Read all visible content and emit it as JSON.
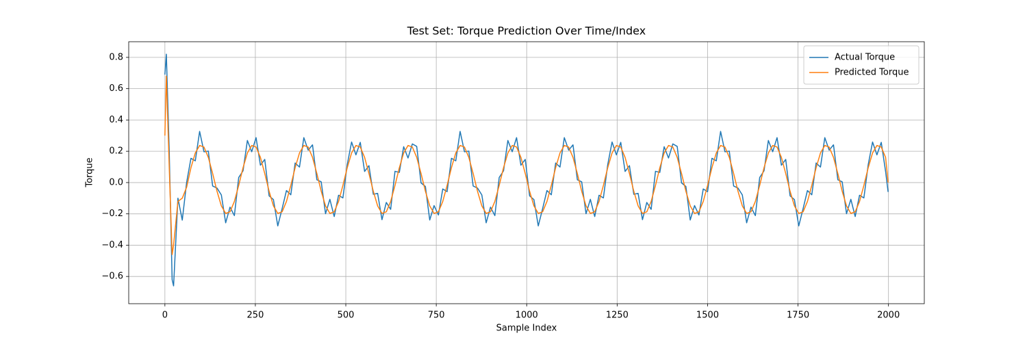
{
  "chart_data": {
    "type": "line",
    "title": "Test Set: Torque Prediction Over Time/Index",
    "xlabel": "Sample Index",
    "ylabel": "Torque",
    "x": [
      0,
      4,
      12,
      20,
      24,
      36,
      48,
      60,
      72,
      84,
      96,
      108,
      120,
      132,
      144,
      156,
      168,
      180,
      192,
      204,
      216,
      228,
      240,
      252,
      264,
      276,
      288,
      300,
      312,
      324,
      336,
      348,
      360,
      372,
      384,
      396,
      408,
      420,
      432,
      444,
      456,
      468,
      480,
      492,
      504,
      516,
      528,
      540,
      552,
      564,
      576,
      588,
      600,
      612,
      624,
      636,
      648,
      660,
      672,
      684,
      696,
      708,
      720,
      732,
      744,
      756,
      768,
      780,
      792,
      804,
      816,
      828,
      840,
      852,
      864,
      876,
      888,
      900,
      912,
      924,
      936,
      948,
      960,
      972,
      984,
      996,
      1008,
      1020,
      1032,
      1044,
      1056,
      1068,
      1080,
      1092,
      1104,
      1116,
      1128,
      1140,
      1152,
      1164,
      1176,
      1188,
      1200,
      1212,
      1224,
      1236,
      1248,
      1260,
      1272,
      1284,
      1296,
      1308,
      1320,
      1332,
      1344,
      1356,
      1368,
      1380,
      1392,
      1404,
      1416,
      1428,
      1440,
      1452,
      1464,
      1476,
      1488,
      1500,
      1512,
      1524,
      1536,
      1548,
      1560,
      1572,
      1584,
      1596,
      1608,
      1620,
      1632,
      1644,
      1656,
      1668,
      1680,
      1692,
      1704,
      1716,
      1728,
      1740,
      1752,
      1764,
      1776,
      1788,
      1800,
      1812,
      1824,
      1836,
      1848,
      1860,
      1872,
      1884,
      1896,
      1908,
      1920,
      1932,
      1944,
      1956,
      1968,
      1980,
      1992,
      1999
    ],
    "series": [
      {
        "name": "Actual Torque",
        "color": "#1f77b4",
        "values": [
          0.69,
          0.82,
          0.2,
          -0.62,
          -0.66,
          -0.1,
          -0.24,
          0.0,
          0.155,
          0.139,
          0.327,
          0.197,
          0.201,
          -0.022,
          -0.035,
          -0.079,
          -0.257,
          -0.157,
          -0.211,
          0.032,
          0.075,
          0.269,
          0.197,
          0.287,
          0.111,
          0.148,
          -0.085,
          -0.109,
          -0.277,
          -0.167,
          -0.051,
          -0.078,
          0.125,
          0.099,
          0.287,
          0.207,
          0.241,
          0.018,
          0.005,
          -0.199,
          -0.107,
          -0.217,
          -0.081,
          -0.098,
          0.115,
          0.259,
          0.177,
          0.257,
          0.071,
          0.108,
          -0.075,
          -0.069,
          -0.237,
          -0.127,
          -0.171,
          0.072,
          0.065,
          0.229,
          0.157,
          0.247,
          0.231,
          -0.002,
          -0.025,
          -0.239,
          -0.147,
          -0.207,
          -0.041,
          -0.058,
          0.155,
          0.139,
          0.327,
          0.197,
          0.201,
          -0.022,
          -0.035,
          -0.079,
          -0.257,
          -0.157,
          -0.211,
          0.032,
          0.075,
          0.269,
          0.197,
          0.287,
          0.111,
          0.148,
          -0.085,
          -0.109,
          -0.277,
          -0.167,
          -0.051,
          -0.078,
          0.125,
          0.099,
          0.287,
          0.207,
          0.241,
          0.018,
          0.005,
          -0.199,
          -0.107,
          -0.217,
          -0.081,
          -0.098,
          0.115,
          0.259,
          0.177,
          0.257,
          0.071,
          0.108,
          -0.075,
          -0.069,
          -0.237,
          -0.127,
          -0.171,
          0.072,
          0.065,
          0.229,
          0.157,
          0.247,
          0.231,
          -0.002,
          -0.025,
          -0.239,
          -0.147,
          -0.207,
          -0.041,
          -0.058,
          0.155,
          0.139,
          0.327,
          0.197,
          0.201,
          -0.022,
          -0.035,
          -0.079,
          -0.257,
          -0.157,
          -0.211,
          0.032,
          0.075,
          0.269,
          0.197,
          0.287,
          0.111,
          0.148,
          -0.085,
          -0.109,
          -0.277,
          -0.167,
          -0.051,
          -0.078,
          0.125,
          0.099,
          0.287,
          0.207,
          0.241,
          0.018,
          0.005,
          -0.199,
          -0.107,
          -0.217,
          -0.081,
          -0.098,
          0.115,
          0.259,
          0.177,
          0.257,
          0.071,
          -0.06
        ]
      },
      {
        "name": "Predicted Torque",
        "color": "#ff7f0e",
        "values": [
          0.3,
          0.68,
          0.1,
          -0.46,
          -0.4,
          -0.12,
          -0.1,
          -0.03,
          0.095,
          0.189,
          0.237,
          0.227,
          0.161,
          0.058,
          -0.055,
          -0.149,
          -0.197,
          -0.187,
          -0.121,
          -0.018,
          0.095,
          0.189,
          0.237,
          0.227,
          0.161,
          0.058,
          -0.055,
          -0.149,
          -0.197,
          -0.187,
          -0.121,
          -0.018,
          0.095,
          0.189,
          0.237,
          0.227,
          0.161,
          0.058,
          -0.055,
          -0.149,
          -0.197,
          -0.187,
          -0.121,
          -0.018,
          0.095,
          0.189,
          0.237,
          0.227,
          0.161,
          0.058,
          -0.055,
          -0.149,
          -0.197,
          -0.187,
          -0.121,
          -0.018,
          0.095,
          0.189,
          0.237,
          0.227,
          0.161,
          0.058,
          -0.055,
          -0.149,
          -0.197,
          -0.187,
          -0.121,
          -0.018,
          0.095,
          0.189,
          0.237,
          0.227,
          0.161,
          0.058,
          -0.055,
          -0.149,
          -0.197,
          -0.187,
          -0.121,
          -0.018,
          0.095,
          0.189,
          0.237,
          0.227,
          0.161,
          0.058,
          -0.055,
          -0.149,
          -0.197,
          -0.187,
          -0.121,
          -0.018,
          0.095,
          0.189,
          0.237,
          0.227,
          0.161,
          0.058,
          -0.055,
          -0.149,
          -0.197,
          -0.187,
          -0.121,
          -0.018,
          0.095,
          0.189,
          0.237,
          0.227,
          0.161,
          0.058,
          -0.055,
          -0.149,
          -0.197,
          -0.187,
          -0.121,
          -0.018,
          0.095,
          0.189,
          0.237,
          0.227,
          0.161,
          0.058,
          -0.055,
          -0.149,
          -0.197,
          -0.187,
          -0.121,
          -0.018,
          0.095,
          0.189,
          0.237,
          0.227,
          0.161,
          0.058,
          -0.055,
          -0.149,
          -0.197,
          -0.187,
          -0.121,
          -0.018,
          0.095,
          0.189,
          0.237,
          0.227,
          0.161,
          0.058,
          -0.055,
          -0.149,
          -0.197,
          -0.187,
          -0.121,
          -0.018,
          0.095,
          0.189,
          0.237,
          0.227,
          0.161,
          0.058,
          -0.055,
          -0.149,
          -0.197,
          -0.187,
          -0.121,
          -0.018,
          0.095,
          0.189,
          0.237,
          0.227,
          0.161,
          0.0
        ]
      }
    ],
    "xlim": [
      -100,
      2099
    ],
    "ylim": [
      -0.774,
      0.9
    ],
    "xticks": [
      0,
      250,
      500,
      750,
      1000,
      1250,
      1500,
      1750,
      2000
    ],
    "yticks": [
      {
        "value": -0.6,
        "label": "−0.6"
      },
      {
        "value": -0.4,
        "label": "−0.4"
      },
      {
        "value": -0.2,
        "label": "−0.2"
      },
      {
        "value": 0,
        "label": "0.0"
      },
      0.2,
      0.4,
      0.6,
      0.8
    ],
    "grid": true,
    "legend": "upper right"
  }
}
